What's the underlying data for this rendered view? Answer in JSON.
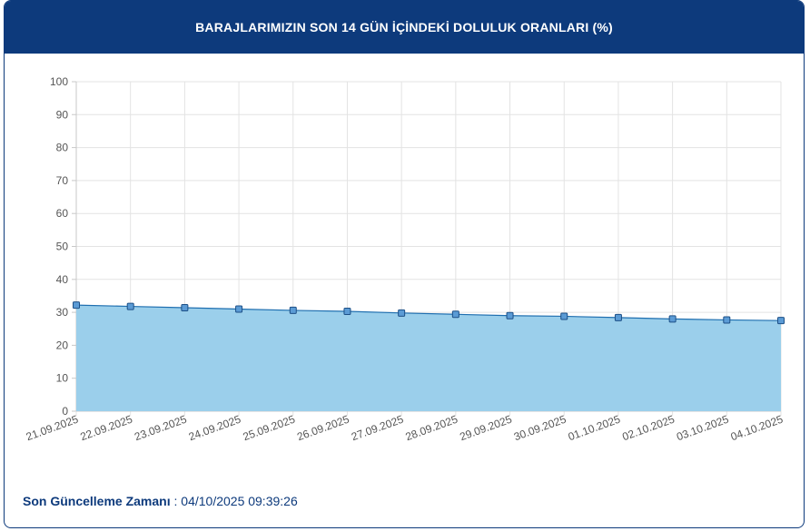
{
  "header": {
    "title": "BARAJLARIMIZIN SON 14 GÜN İÇİNDEKİ DOLULUK ORANLARI (%)"
  },
  "footer": {
    "label": "Son Güncelleme Zamanı",
    "separator": " : ",
    "value": "04/10/2025 09:39:26"
  },
  "colors": {
    "header": "#0d3a7c",
    "area": "#9bcfeb",
    "line": "#1f6fb0",
    "marker": "#5b9bd5"
  },
  "chart_data": {
    "type": "area",
    "title": "BARAJLARIMIZIN SON 14 GÜN İÇİNDEKİ DOLULUK ORANLARI (%)",
    "xlabel": "",
    "ylabel": "",
    "ylim": [
      0,
      100
    ],
    "yticks": [
      0,
      10,
      20,
      30,
      40,
      50,
      60,
      70,
      80,
      90,
      100
    ],
    "grid": true,
    "categories": [
      "21.09.2025",
      "22.09.2025",
      "23.09.2025",
      "24.09.2025",
      "25.09.2025",
      "26.09.2025",
      "27.09.2025",
      "28.09.2025",
      "29.09.2025",
      "30.09.2025",
      "01.10.2025",
      "02.10.2025",
      "03.10.2025",
      "04.10.2025"
    ],
    "values": [
      32.2,
      31.8,
      31.4,
      31.0,
      30.6,
      30.3,
      29.8,
      29.4,
      29.0,
      28.8,
      28.4,
      28.0,
      27.7,
      27.5
    ]
  }
}
